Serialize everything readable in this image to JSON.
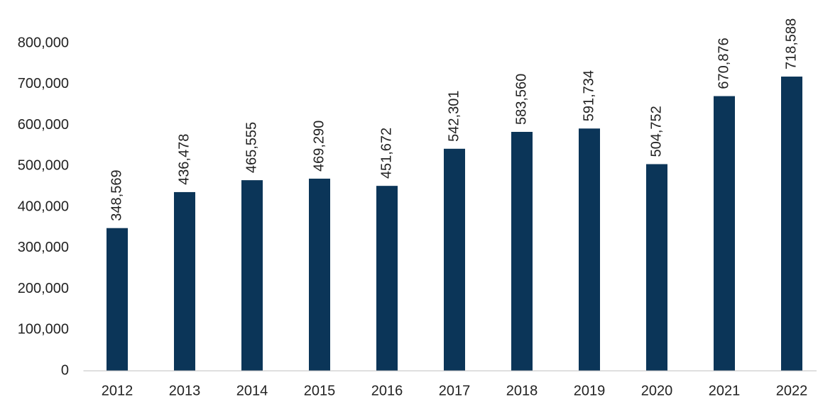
{
  "chart_data": {
    "type": "bar",
    "categories": [
      "2012",
      "2013",
      "2014",
      "2015",
      "2016",
      "2017",
      "2018",
      "2019",
      "2020",
      "2021",
      "2022"
    ],
    "values": [
      348569,
      436478,
      465555,
      469290,
      451672,
      542301,
      583560,
      591734,
      504752,
      670876,
      718588
    ],
    "value_labels": [
      "348,569",
      "436,478",
      "465,555",
      "469,290",
      "451,672",
      "542,301",
      "583,560",
      "591,734",
      "504,752",
      "670,876",
      "718,588"
    ],
    "color": "#0b3558",
    "ylim": [
      0,
      800000
    ],
    "yticks": [
      0,
      {
        "value": 100000,
        "label": "100,000"
      },
      {
        "value": 200000,
        "label": "200,000"
      },
      {
        "value": 300000,
        "label": "300,000"
      },
      {
        "value": 400000,
        "label": "400,000"
      },
      {
        "value": 500000,
        "label": "500,000"
      },
      {
        "value": 600000,
        "label": "600,000"
      },
      {
        "value": 700000,
        "label": "700,000"
      },
      {
        "value": 800000,
        "label": "800,000"
      }
    ],
    "grid": false
  }
}
